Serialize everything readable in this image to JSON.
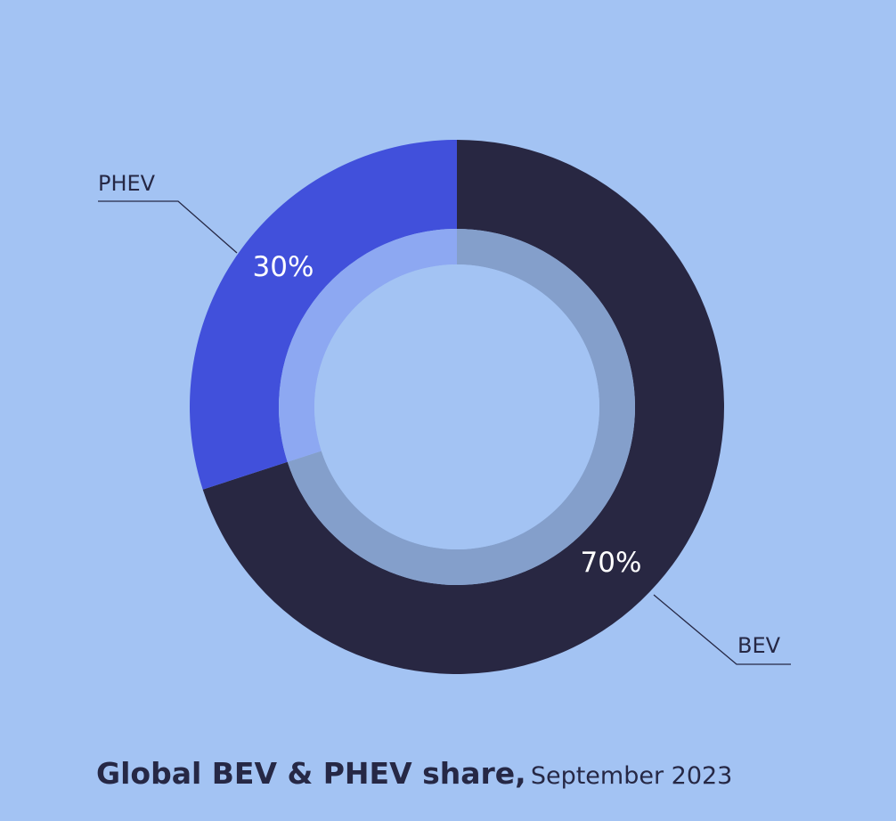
{
  "chart_data": {
    "type": "pie",
    "variant": "donut",
    "title": "Global BEV & PHEV share,",
    "subtitle": "September 2023",
    "slices": [
      {
        "label": "PHEV",
        "value": 30,
        "value_label": "30%",
        "color": "#4150db",
        "inner_color": "#8da8f2"
      },
      {
        "label": "BEV",
        "value": 70,
        "value_label": "70%",
        "color": "#282742",
        "inner_color": "#849fcb"
      }
    ],
    "start_angle": "12 o'clock",
    "direction": "clockwise from BEV",
    "background_color": "#a3c3f3",
    "text_color": "#262845"
  }
}
